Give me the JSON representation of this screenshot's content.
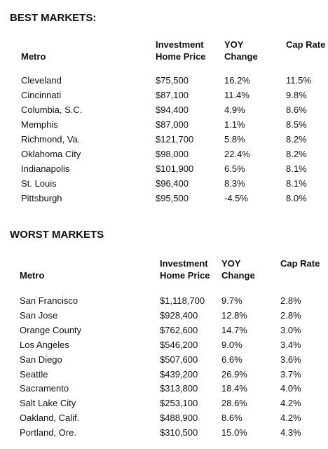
{
  "sections": [
    {
      "title": "BEST MARKETS:",
      "headers": [
        [
          "Metro"
        ],
        [
          "Investment",
          "Home Price"
        ],
        [
          "YOY",
          "Change"
        ],
        [
          "Cap Rate"
        ]
      ],
      "rows": [
        [
          "Cleveland",
          "$75,500",
          "16.2%",
          "11.5%"
        ],
        [
          "Cincinnati",
          "$87,100",
          "11.4%",
          "9.8%"
        ],
        [
          "Columbia, S.C.",
          "$94,400",
          "4.9%",
          "8.6%"
        ],
        [
          "Memphis",
          "$87,000",
          "1.1%",
          "8.5%"
        ],
        [
          "Richmond, Va.",
          "$121,700",
          "5.8%",
          "8.2%"
        ],
        [
          "Oklahoma City",
          "$98,000",
          "22.4%",
          "8.2%"
        ],
        [
          "Indianapolis",
          "$101,900",
          "6.5%",
          "8.1%"
        ],
        [
          "St. Louis",
          "$96,400",
          "8.3%",
          "8.1%"
        ],
        [
          "Pittsburgh",
          "$95,500",
          "-4.5%",
          "8.0%"
        ]
      ]
    },
    {
      "title": "WORST MARKETS",
      "headers": [
        [
          "Metro"
        ],
        [
          "Investment",
          "Home Price"
        ],
        [
          "YOY",
          "Change"
        ],
        [
          "Cap Rate"
        ]
      ],
      "rows": [
        [
          "San Francisco",
          "$1,118,700",
          "9.7%",
          "2.8%"
        ],
        [
          "San Jose",
          "$928,400",
          "12.8%",
          "2.8%"
        ],
        [
          "Orange County",
          "$762,600",
          "14.7%",
          "3.0%"
        ],
        [
          "Los Angeles",
          "$546,200",
          "9.0%",
          "3.4%"
        ],
        [
          "San Diego",
          "$507,600",
          "6.6%",
          "3.6%"
        ],
        [
          "Seattle",
          "$439,200",
          "26.9%",
          "3.7%"
        ],
        [
          "Sacramento",
          "$313,800",
          "18.4%",
          "4.0%"
        ],
        [
          "Salt Lake City",
          "$253,100",
          "28.6%",
          "4.2%"
        ],
        [
          "Oakland, Calif.",
          "$488,900",
          "8.6%",
          "4.2%"
        ],
        [
          "Portland, Ore.",
          "$310,500",
          "15.0%",
          "4.3%"
        ]
      ]
    }
  ]
}
